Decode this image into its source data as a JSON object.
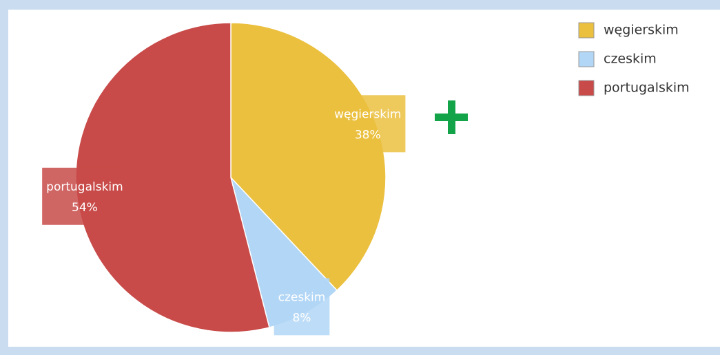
{
  "chart_data": {
    "type": "pie",
    "categories": [
      "węgierskim",
      "czeskim",
      "portugalskim"
    ],
    "values": [
      38,
      8,
      54
    ],
    "value_labels": [
      "38%",
      "8%",
      "54%"
    ],
    "colors": [
      "#ebc03f",
      "#b2d6f6",
      "#c84b49"
    ],
    "legend": "top-right"
  }
}
